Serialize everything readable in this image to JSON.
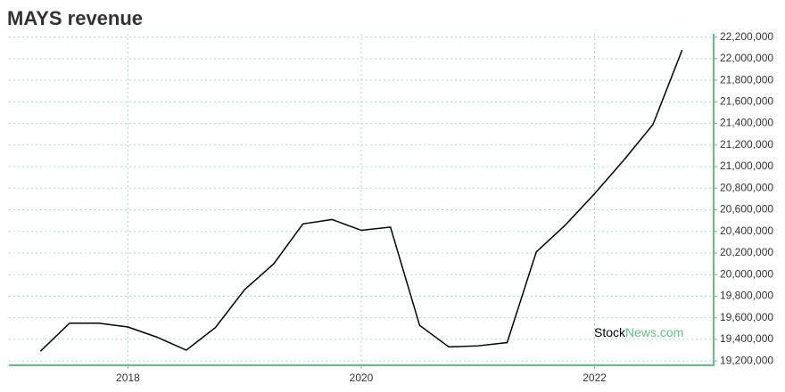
{
  "chart_data": {
    "type": "line",
    "title": "MAYS revenue",
    "watermark": {
      "first": "Stock",
      "second": "News.com"
    },
    "x": [
      2017.25,
      2017.5,
      2017.75,
      2018,
      2018.25,
      2018.5,
      2018.75,
      2019,
      2019.25,
      2019.5,
      2019.75,
      2020,
      2020.25,
      2020.5,
      2020.75,
      2021,
      2021.25,
      2021.5,
      2021.75,
      2022,
      2022.25,
      2022.5,
      2022.75
    ],
    "values": [
      19290000,
      19550000,
      19550000,
      19515000,
      19420000,
      19300000,
      19510000,
      19860000,
      20100000,
      20470000,
      20510000,
      20410000,
      20440000,
      19530000,
      19330000,
      19340000,
      19370000,
      20210000,
      20460000,
      20750000,
      21060000,
      21390000,
      22080000
    ],
    "color": "#000000",
    "axis_color": "#5cc284",
    "grid": true,
    "xlim": [
      2016.98,
      2023.02
    ],
    "xticks": [
      2018,
      2020,
      2022
    ],
    "ylim": [
      19160000,
      22230000
    ],
    "yticks": [
      {
        "value": 19200000,
        "label": "19,200,000"
      },
      {
        "value": 19400000,
        "label": "19,400,000"
      },
      {
        "value": 19600000,
        "label": "19,600,000"
      },
      {
        "value": 19800000,
        "label": "19,800,000"
      },
      {
        "value": 20000000,
        "label": "20,000,000"
      },
      {
        "value": 20200000,
        "label": "20,200,000"
      },
      {
        "value": 20400000,
        "label": "20,400,000"
      },
      {
        "value": 20600000,
        "label": "20,600,000"
      },
      {
        "value": 20800000,
        "label": "20,800,000"
      },
      {
        "value": 21000000,
        "label": "21,000,000"
      },
      {
        "value": 21200000,
        "label": "21,200,000"
      },
      {
        "value": 21400000,
        "label": "21,400,000"
      },
      {
        "value": 21600000,
        "label": "21,600,000"
      },
      {
        "value": 21800000,
        "label": "21,800,000"
      },
      {
        "value": 22000000,
        "label": "22,000,000"
      },
      {
        "value": 22200000,
        "label": "22,200,000"
      }
    ]
  }
}
